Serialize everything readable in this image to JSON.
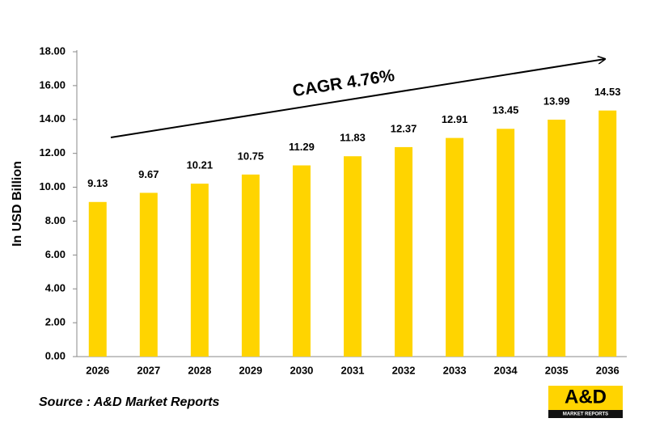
{
  "chart_data": {
    "type": "bar",
    "y_label": "In USD Billion",
    "annotation": "CAGR 4.76%",
    "source": "Source : A&D Market Reports",
    "logo_title": "A&D",
    "logo_subtitle": "MARKET REPORTS",
    "categories": [
      "2026",
      "2027",
      "2028",
      "2029",
      "2030",
      "2031",
      "2032",
      "2033",
      "2034",
      "2035",
      "2036"
    ],
    "values": [
      9.13,
      9.67,
      10.21,
      10.75,
      11.29,
      11.83,
      12.37,
      12.91,
      13.45,
      13.99,
      14.53
    ],
    "color": "#ffd400",
    "ylim": [
      0,
      18
    ],
    "yticks": [
      {
        "value": 0,
        "label": "0.00"
      },
      {
        "value": 2,
        "label": "2.00"
      },
      {
        "value": 4,
        "label": "4.00"
      },
      {
        "value": 6,
        "label": "6.00"
      },
      {
        "value": 8,
        "label": "8.00"
      },
      {
        "value": 10,
        "label": "10.00"
      },
      {
        "value": 12,
        "label": "12.00"
      },
      {
        "value": 14,
        "label": "14.00"
      },
      {
        "value": 16,
        "label": "16.00"
      },
      {
        "value": 18,
        "label": "18.00"
      }
    ],
    "grid": false
  }
}
